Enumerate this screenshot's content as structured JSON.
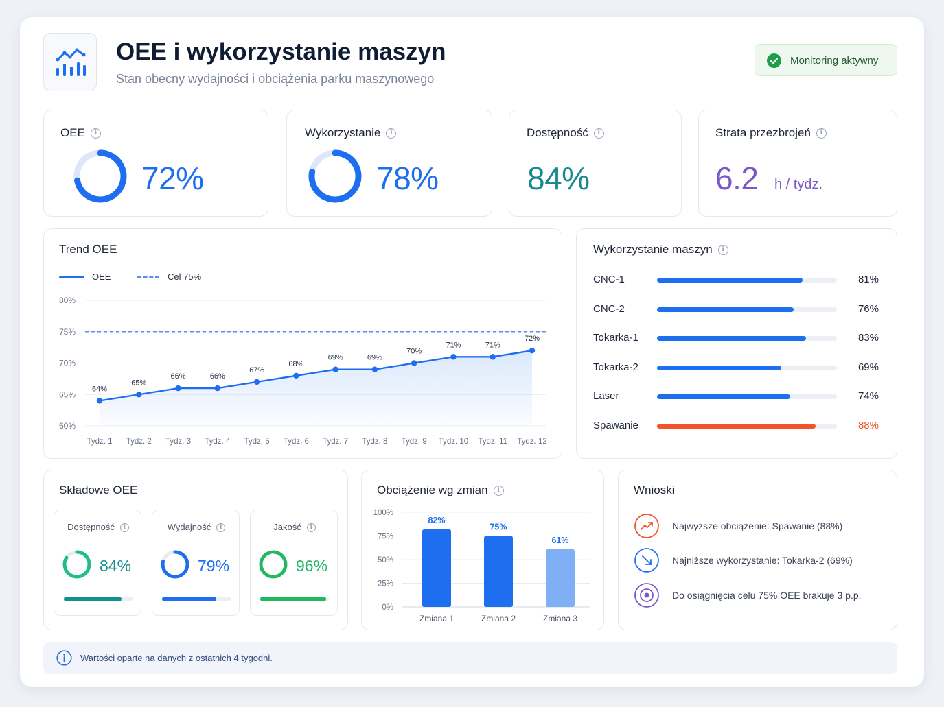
{
  "header": {
    "title": "OEE i wykorzystanie maszyn",
    "subtitle": "Stan obecny wydajności i obciążenia parku maszynowego",
    "status_label": "Monitoring aktywny",
    "logo_icon": "chart-bars-icon"
  },
  "kpis": {
    "oee": {
      "label": "OEE",
      "value_text": "72%",
      "value": 72,
      "color": "#1e6ff0"
    },
    "utilization": {
      "label": "Wykorzystanie",
      "value_text": "78%",
      "value": 78,
      "color": "#1e6ff0"
    },
    "availability": {
      "label": "Dostępność",
      "value_text": "84%",
      "color": "#1a8a8f"
    },
    "changeover": {
      "label": "Strata przezbrojeń",
      "value_text": "6.2",
      "unit": "h / tydz.",
      "color": "#7b57c8"
    }
  },
  "trend": {
    "title": "Trend OEE",
    "legend_series": "OEE",
    "legend_target": "Cel 75%",
    "chart_data": {
      "type": "line",
      "x": [
        "Tydz. 1",
        "Tydz. 2",
        "Tydz. 3",
        "Tydz. 4",
        "Tydz. 5",
        "Tydz. 6",
        "Tydz. 7",
        "Tydz. 8",
        "Tydz. 9",
        "Tydz. 10",
        "Tydz. 11",
        "Tydz. 12"
      ],
      "series": [
        {
          "name": "OEE",
          "values": [
            64,
            65,
            66,
            66,
            67,
            68,
            69,
            69,
            70,
            71,
            71,
            72
          ]
        }
      ],
      "labels": [
        "64%",
        "65%",
        "66%",
        "66%",
        "67%",
        "68%",
        "69%",
        "69%",
        "70%",
        "71%",
        "71%",
        "72%"
      ],
      "target": 75,
      "ylim": [
        60,
        80
      ],
      "yticks": [
        "60%",
        "65%",
        "70%",
        "75%",
        "80%"
      ],
      "ytick_values": [
        60,
        65,
        70,
        75,
        80
      ],
      "grid": true,
      "legend": "top-left",
      "color": "#1e6ff0"
    }
  },
  "machines": {
    "title": "Wykorzystanie maszyn",
    "items": [
      {
        "name": "CNC-1",
        "value": 81,
        "label": "81%",
        "color": "#1e6ff0"
      },
      {
        "name": "CNC-2",
        "value": 76,
        "label": "76%",
        "color": "#1e6ff0"
      },
      {
        "name": "Tokarka-1",
        "value": 83,
        "label": "83%",
        "color": "#1e6ff0"
      },
      {
        "name": "Tokarka-2",
        "value": 69,
        "label": "69%",
        "color": "#1e6ff0"
      },
      {
        "name": "Laser",
        "value": 74,
        "label": "74%",
        "color": "#1e6ff0"
      },
      {
        "name": "Spawanie",
        "value": 88,
        "label": "88%",
        "color": "#f0552c"
      }
    ]
  },
  "components": {
    "title": "Składowe OEE",
    "items": [
      {
        "label": "Dostępność",
        "value": 84,
        "value_text": "84%",
        "ring_color": "#1fbf84",
        "bar_color": "#14918f"
      },
      {
        "label": "Wydajność",
        "value": 79,
        "value_text": "79%",
        "ring_color": "#1e6ff0",
        "bar_color": "#1e6ff0"
      },
      {
        "label": "Jakość",
        "value": 96,
        "value_text": "96%",
        "ring_color": "#22b863",
        "bar_color": "#22b863"
      }
    ]
  },
  "shifts": {
    "title": "Obciążenie wg zmian",
    "chart_data": {
      "type": "bar",
      "categories": [
        "Zmiana 1",
        "Zmiana 2",
        "Zmiana 3"
      ],
      "values": [
        82,
        75,
        61
      ],
      "labels": [
        "82%",
        "75%",
        "61%"
      ],
      "ylim": [
        0,
        100
      ],
      "yticks": [
        "0%",
        "25%",
        "50%",
        "75%",
        "100%"
      ],
      "ytick_values": [
        0,
        25,
        50,
        75,
        100
      ],
      "colors": [
        "#1e6ff0",
        "#1e6ff0",
        "#7fb0f5"
      ],
      "grid": true
    }
  },
  "insights": {
    "title": "Wnioski",
    "items": [
      {
        "text": "Najwyższe obciążenie: Spawanie (88%)",
        "icon": "trend-up-icon",
        "color": "#f0552c"
      },
      {
        "text": "Najniższe wykorzystanie: Tokarka-2 (69%)",
        "icon": "arrow-down-right-icon",
        "color": "#1e6ff0"
      },
      {
        "text": "Do osiągnięcia celu 75% OEE brakuje 3 p.p.",
        "icon": "target-icon",
        "color": "#7b57c8"
      }
    ]
  },
  "footer": {
    "note": "Wartości oparte na danych z ostatnich 4 tygodni."
  }
}
